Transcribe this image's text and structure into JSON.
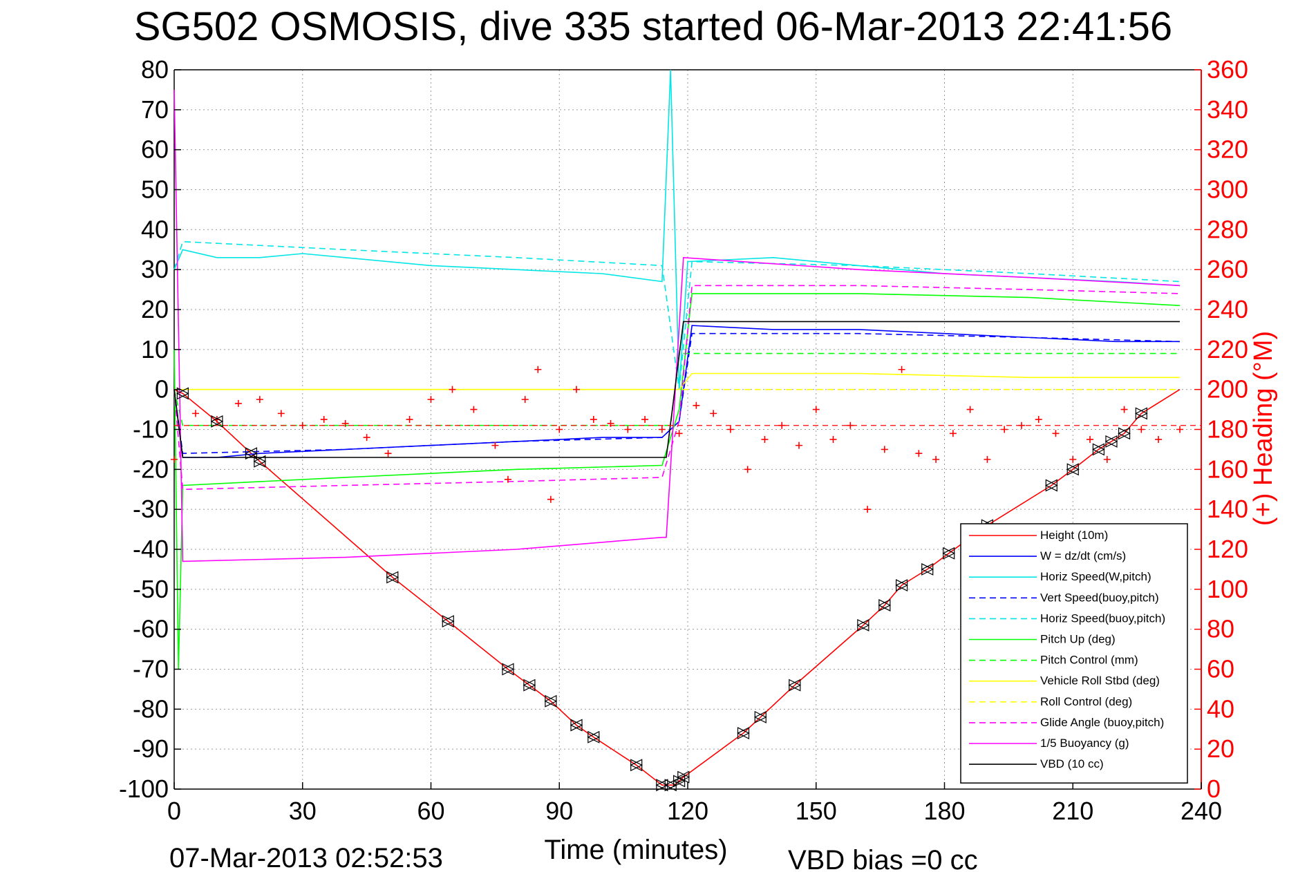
{
  "chart_data": {
    "type": "line",
    "title": "SG502 OSMOSIS, dive 335 started 06-Mar-2013 22:41:56",
    "xlabel": "Time (minutes)",
    "ylabel_right": "(+) Heading (°M)",
    "footer_left": "07-Mar-2013 02:52:53",
    "footer_right": "VBD bias =0 cc",
    "xlim": [
      0,
      240
    ],
    "ylim": [
      -100,
      80
    ],
    "ylim_right": [
      0,
      360
    ],
    "x_ticks": [
      "0",
      "30",
      "60",
      "90",
      "120",
      "150",
      "180",
      "210",
      "240"
    ],
    "y_ticks": [
      "80",
      "70",
      "60",
      "50",
      "40",
      "30",
      "20",
      "10",
      "0",
      "-10",
      "-20",
      "-30",
      "-40",
      "-50",
      "-60",
      "-70",
      "-80",
      "-90",
      "-100"
    ],
    "y_ticks_right": [
      "360",
      "340",
      "320",
      "300",
      "280",
      "260",
      "240",
      "220",
      "200",
      "180",
      "160",
      "140",
      "120",
      "100",
      "80",
      "60",
      "40",
      "20",
      "0"
    ],
    "grid": true,
    "legend_position": "bottom-right",
    "series": [
      {
        "name": "Height (10m)",
        "color": "#ff0000",
        "style": "solid",
        "x": [
          0,
          2,
          10,
          20,
          51,
          64,
          78,
          83,
          88,
          94,
          98,
          108,
          114,
          117,
          119,
          133,
          137,
          145,
          161,
          166,
          170,
          176,
          181,
          190,
          205,
          210,
          216,
          219,
          222,
          226,
          235
        ],
        "y": [
          0,
          -1,
          -8,
          -18,
          -47,
          -58,
          -70,
          -74,
          -78,
          -84,
          -87,
          -94,
          -99,
          -99,
          -97,
          -86,
          -82,
          -74,
          -59,
          -54,
          -49,
          -45,
          -41,
          -34,
          -24,
          -20,
          -15,
          -13,
          -11,
          -6,
          0
        ]
      },
      {
        "name": "W = dz/dt (cm/s)",
        "color": "#0000ff",
        "style": "solid",
        "x": [
          0,
          2,
          10,
          20,
          40,
          60,
          80,
          100,
          114,
          118,
          121,
          140,
          160,
          180,
          200,
          220,
          235
        ],
        "y": [
          0,
          -17,
          -17,
          -16,
          -15,
          -14,
          -13,
          -12,
          -12,
          -8,
          16,
          15,
          15,
          14,
          13,
          12,
          12
        ]
      },
      {
        "name": "Horiz Speed(W,pitch)",
        "color": "#00e5e5",
        "style": "solid",
        "x": [
          0,
          2,
          10,
          20,
          30,
          40,
          60,
          80,
          100,
          114,
          116,
          118,
          120,
          140,
          160,
          180,
          200,
          220,
          235
        ],
        "y": [
          30,
          35,
          33,
          33,
          34,
          33,
          31,
          30,
          29,
          27,
          80,
          0,
          32,
          33,
          31,
          29,
          28,
          27,
          26
        ]
      },
      {
        "name": "Vert Speed(buoy,pitch)",
        "color": "#0000ff",
        "style": "dashed",
        "x": [
          0,
          2,
          40,
          80,
          114,
          118,
          121,
          160,
          200,
          235
        ],
        "y": [
          0,
          -16,
          -15,
          -13,
          -12,
          -8,
          14,
          14,
          13,
          12
        ]
      },
      {
        "name": "Horiz Speed(buoy,pitch)",
        "color": "#00e5e5",
        "style": "dashed",
        "x": [
          0,
          2,
          40,
          80,
          114,
          118,
          121,
          160,
          200,
          235
        ],
        "y": [
          30,
          37,
          35,
          33,
          31,
          0,
          32,
          31,
          29,
          27
        ]
      },
      {
        "name": "Pitch Up (deg)",
        "color": "#00ff00",
        "style": "solid",
        "x": [
          0,
          1,
          2,
          40,
          80,
          114,
          118,
          121,
          160,
          200,
          235
        ],
        "y": [
          10,
          -70,
          -24,
          -22,
          -20,
          -19,
          -5,
          24,
          24,
          23,
          21
        ]
      },
      {
        "name": "Pitch Control (mm)",
        "color": "#00ff00",
        "style": "dashed",
        "x": [
          0,
          2,
          114,
          116,
          118,
          121,
          235
        ],
        "y": [
          0,
          -9,
          -9,
          -9,
          9,
          9,
          9
        ]
      },
      {
        "name": "Vehicle Roll Stbd (deg)",
        "color": "#ffff00",
        "style": "solid",
        "x": [
          0,
          2,
          40,
          80,
          114,
          118,
          121,
          160,
          200,
          235
        ],
        "y": [
          0,
          0,
          0,
          0,
          0,
          0,
          4,
          4,
          3,
          3
        ]
      },
      {
        "name": "Roll Control (deg)",
        "color": "#ffff00",
        "style": "dashed",
        "x": [
          0,
          2,
          114,
          121,
          235
        ],
        "y": [
          0,
          0,
          0,
          0,
          0
        ]
      },
      {
        "name": "Glide Angle (buoy,pitch)",
        "color": "#ff00ff",
        "style": "dashed",
        "x": [
          0,
          2,
          40,
          80,
          114,
          118,
          121,
          160,
          200,
          235
        ],
        "y": [
          0,
          -25,
          -24,
          -23,
          -22,
          -8,
          26,
          26,
          25,
          24
        ]
      },
      {
        "name": "1/5 Buoyancy (g)",
        "color": "#ff00ff",
        "style": "solid",
        "x": [
          0,
          2,
          40,
          80,
          114,
          115,
          119,
          160,
          200,
          235
        ],
        "y": [
          75,
          -43,
          -42,
          -40,
          -37,
          -37,
          33,
          30,
          28,
          26
        ]
      },
      {
        "name": "VBD (10 cc)",
        "color": "#000000",
        "style": "solid",
        "x": [
          0,
          2,
          114,
          115,
          119,
          235
        ],
        "y": [
          0,
          -17,
          -17,
          -17,
          17,
          17
        ]
      }
    ],
    "heading_series": {
      "name": "(+) Heading (°M)",
      "color": "#ff0000",
      "marker": "+",
      "x": [
        0,
        5,
        10,
        15,
        20,
        25,
        30,
        35,
        40,
        45,
        50,
        55,
        60,
        65,
        70,
        75,
        78,
        82,
        85,
        88,
        90,
        94,
        98,
        102,
        106,
        110,
        114,
        118,
        122,
        126,
        130,
        134,
        138,
        142,
        146,
        150,
        154,
        158,
        162,
        166,
        170,
        174,
        178,
        182,
        186,
        190,
        194,
        198,
        202,
        206,
        210,
        214,
        218,
        222,
        226,
        230,
        235
      ],
      "y": [
        165,
        188,
        185,
        193,
        195,
        188,
        182,
        185,
        183,
        176,
        168,
        185,
        195,
        200,
        190,
        172,
        155,
        195,
        210,
        145,
        180,
        200,
        185,
        183,
        180,
        185,
        180,
        178,
        192,
        188,
        180,
        160,
        175,
        182,
        172,
        190,
        175,
        182,
        140,
        170,
        210,
        168,
        165,
        178,
        190,
        165,
        180,
        182,
        185,
        178,
        165,
        175,
        165,
        190,
        180,
        175,
        180
      ]
    },
    "heading_dashed_reference": 182,
    "direction_markers": {
      "x": [
        2,
        10,
        18,
        20,
        51,
        64,
        78,
        83,
        88,
        94,
        98,
        108,
        114,
        116,
        118,
        119,
        133,
        137,
        145,
        161,
        166,
        170,
        176,
        181,
        190,
        205,
        210,
        216,
        219,
        222,
        226
      ]
    }
  }
}
